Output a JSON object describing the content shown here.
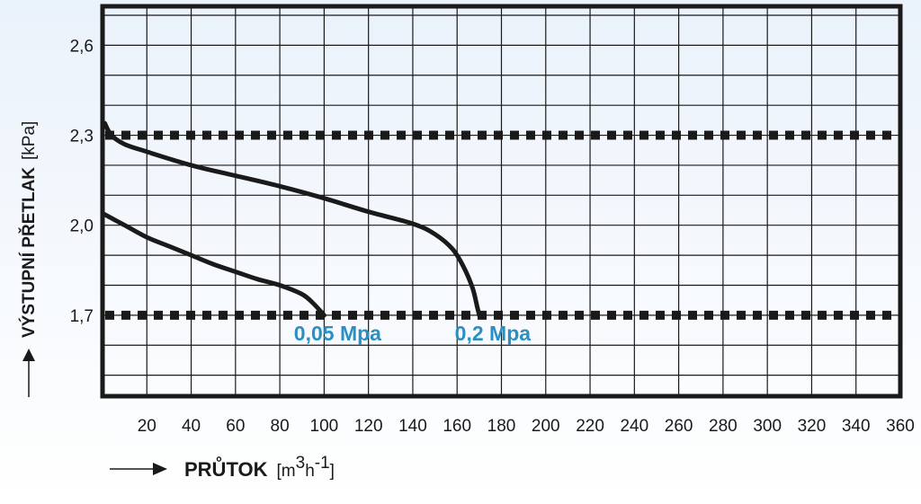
{
  "chart_data": {
    "type": "line",
    "ylabel": "VÝSTUPNÍ PŘETLAK",
    "ylabel_unit": "[kPa]",
    "xlabel": "PRŮTOK",
    "xlabel_unit_parts": [
      "[m",
      "3",
      "h",
      "-1",
      "]"
    ],
    "x_ticks": [
      "20",
      "40",
      "60",
      "80",
      "100",
      "120",
      "140",
      "160",
      "180",
      "200",
      "220",
      "240",
      "260",
      "280",
      "300",
      "320",
      "340",
      "360"
    ],
    "y_ticks": [
      "1,7",
      "2,0",
      "2,3",
      "2,6"
    ],
    "xlim": [
      0,
      360
    ],
    "ylim": [
      1.43,
      2.73
    ],
    "grid": true,
    "accent_color": "#2a8fc4",
    "curve_color": "#1a1a1a",
    "reference_lines": [
      {
        "y": 2.3,
        "style": "dotted"
      },
      {
        "y": 1.7,
        "style": "dotted"
      }
    ],
    "series": [
      {
        "name": "0,05 Mpa",
        "x": [
          0,
          10,
          20,
          30,
          40,
          50,
          60,
          70,
          80,
          90,
          95,
          100
        ],
        "y": [
          2.04,
          2.0,
          1.96,
          1.93,
          1.9,
          1.87,
          1.845,
          1.82,
          1.8,
          1.77,
          1.74,
          1.7
        ]
      },
      {
        "name": "0,2 Mpa",
        "x": [
          1,
          4,
          10,
          20,
          40,
          60,
          80,
          100,
          120,
          140,
          150,
          158,
          163,
          167,
          169,
          170
        ],
        "y": [
          2.34,
          2.3,
          2.27,
          2.245,
          2.2,
          2.165,
          2.13,
          2.09,
          2.045,
          2.005,
          1.97,
          1.92,
          1.86,
          1.79,
          1.73,
          1.7
        ]
      }
    ]
  }
}
